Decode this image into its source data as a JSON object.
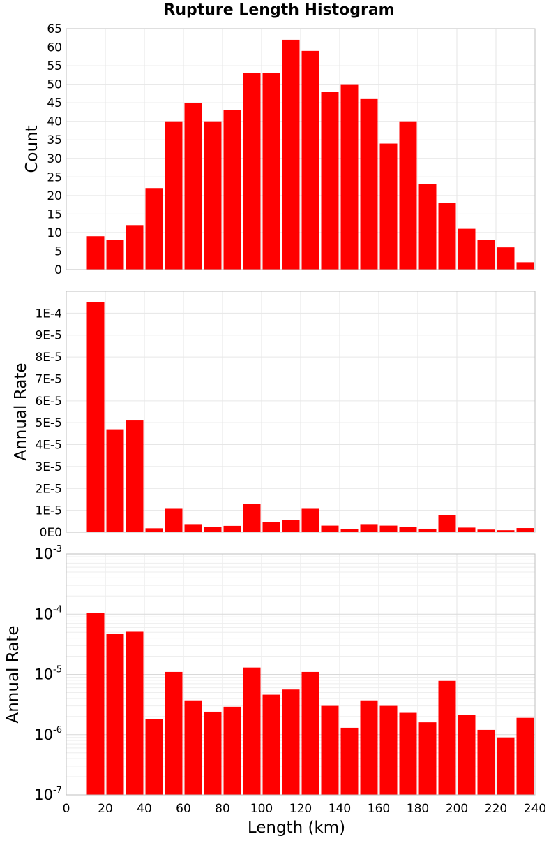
{
  "title": "Rupture Length Histogram",
  "chart_data": [
    {
      "type": "bar",
      "title": "",
      "xlabel": "",
      "ylabel": "Count",
      "xlim": [
        0,
        240
      ],
      "ylim": [
        0,
        65
      ],
      "x_bin_centers": [
        15,
        25,
        35,
        45,
        55,
        65,
        75,
        85,
        95,
        105,
        115,
        125,
        135,
        145,
        155,
        165,
        175,
        185,
        195,
        205,
        215,
        225,
        235
      ],
      "values": [
        9,
        8,
        12,
        22,
        40,
        45,
        40,
        43,
        53,
        53,
        62,
        59,
        48,
        50,
        46,
        34,
        40,
        23,
        18,
        11,
        8,
        6,
        2
      ],
      "y_ticks": [
        0,
        5,
        10,
        15,
        20,
        25,
        30,
        35,
        40,
        45,
        50,
        55,
        60,
        65
      ],
      "y_tick_labels": [
        "0",
        "5",
        "10",
        "15",
        "20",
        "25",
        "30",
        "35",
        "40",
        "45",
        "50",
        "55",
        "60",
        "65"
      ],
      "color": "#ff0000",
      "grid": true
    },
    {
      "type": "bar",
      "title": "",
      "xlabel": "",
      "ylabel": "Annual Rate",
      "xlim": [
        0,
        240
      ],
      "ylim": [
        0,
        0.00011
      ],
      "x_bin_centers": [
        15,
        25,
        35,
        45,
        55,
        65,
        75,
        85,
        95,
        105,
        115,
        125,
        135,
        145,
        155,
        165,
        175,
        185,
        195,
        205,
        215,
        225,
        235
      ],
      "values": [
        0.000105,
        4.7e-05,
        5.1e-05,
        1.8e-06,
        1.1e-05,
        3.7e-06,
        2.4e-06,
        2.9e-06,
        1.3e-05,
        4.6e-06,
        5.6e-06,
        1.1e-05,
        3e-06,
        1.3e-06,
        3.7e-06,
        3e-06,
        2.3e-06,
        1.6e-06,
        7.8e-06,
        2.1e-06,
        1.2e-06,
        9e-07,
        1.9e-06
      ],
      "y_ticks": [
        0,
        1e-05,
        2e-05,
        3e-05,
        4e-05,
        5e-05,
        6e-05,
        7e-05,
        8e-05,
        9e-05,
        0.0001
      ],
      "y_tick_labels": [
        "0E0",
        "1E-5",
        "2E-5",
        "3E-5",
        "4E-5",
        "5E-5",
        "6E-5",
        "7E-5",
        "8E-5",
        "9E-5",
        "1E-4"
      ],
      "color": "#ff0000",
      "grid": true
    },
    {
      "type": "bar",
      "title": "",
      "xlabel": "Length (km)",
      "ylabel": "Annual Rate",
      "xlim": [
        0,
        240
      ],
      "ylim": [
        1e-07,
        0.001
      ],
      "yscale": "log",
      "x_bin_centers": [
        15,
        25,
        35,
        45,
        55,
        65,
        75,
        85,
        95,
        105,
        115,
        125,
        135,
        145,
        155,
        165,
        175,
        185,
        195,
        205,
        215,
        225,
        235
      ],
      "values": [
        0.000105,
        4.7e-05,
        5.1e-05,
        1.8e-06,
        1.1e-05,
        3.7e-06,
        2.4e-06,
        2.9e-06,
        1.3e-05,
        4.6e-06,
        5.6e-06,
        1.1e-05,
        3e-06,
        1.3e-06,
        3.7e-06,
        3e-06,
        2.3e-06,
        1.6e-06,
        7.8e-06,
        2.1e-06,
        1.2e-06,
        9e-07,
        1.9e-06
      ],
      "y_decade_exponents": [
        -7,
        -6,
        -5,
        -4,
        -3
      ],
      "x_ticks": [
        0,
        20,
        40,
        60,
        80,
        100,
        120,
        140,
        160,
        180,
        200,
        220,
        240
      ],
      "x_tick_labels": [
        "0",
        "20",
        "40",
        "60",
        "80",
        "100",
        "120",
        "140",
        "160",
        "180",
        "200",
        "220",
        "240"
      ],
      "color": "#ff0000",
      "grid": true
    }
  ]
}
